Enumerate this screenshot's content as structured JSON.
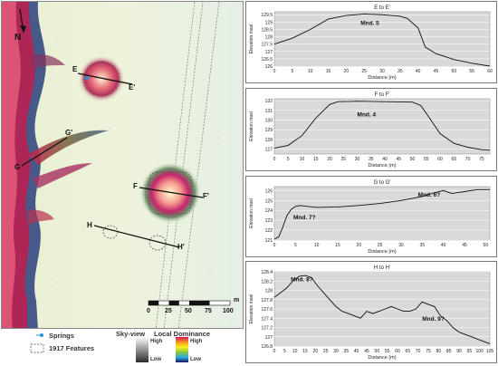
{
  "map": {
    "north_label": "N",
    "labels": {
      "e": "E",
      "e_prime": "E'",
      "f": "F",
      "f_prime": "F'",
      "g": "G",
      "g_prime": "G'",
      "h": "H",
      "h_prime": "H'"
    },
    "scale_ticks": [
      "0",
      "25",
      "50",
      "75",
      "100"
    ],
    "scale_unit": "m"
  },
  "legend": {
    "springs": "Springs",
    "features_1917": "1917 Features",
    "sky_view_title": "Sky-view",
    "sky_view_high": "High",
    "sky_view_low": "Low",
    "local_dominance_title": "Local Dominance",
    "local_dominance_high": "High",
    "local_dominance_low": "Low"
  },
  "chart_data": [
    {
      "type": "line",
      "title": "E to E'",
      "xlabel": "Distance (m)",
      "ylabel": "Elevation masl",
      "x_ticks": [
        0,
        5,
        10,
        15,
        20,
        25,
        30,
        35,
        40,
        45,
        50,
        55,
        60
      ],
      "y_ticks": [
        126,
        126.5,
        127,
        127.5,
        128,
        128.5,
        129,
        129.5
      ],
      "xlim": [
        0,
        60
      ],
      "ylim": [
        126,
        129.7
      ],
      "grid": true,
      "annotations": [
        {
          "text": "Mnd. 5",
          "x": 24,
          "y": 128.8
        }
      ],
      "x": [
        0,
        5,
        10,
        15,
        20,
        25,
        30,
        35,
        37,
        40,
        42,
        45,
        50,
        55,
        60
      ],
      "y": [
        127.5,
        127.9,
        128.5,
        129.2,
        129.45,
        129.55,
        129.5,
        129.4,
        129.25,
        128.6,
        127.3,
        126.85,
        126.45,
        126.2,
        126.0
      ]
    },
    {
      "type": "line",
      "title": "F to F'",
      "xlabel": "Distance (m)",
      "ylabel": "Elevation masl",
      "x_ticks": [
        0,
        5,
        10,
        15,
        20,
        25,
        30,
        35,
        40,
        45,
        50,
        55,
        60,
        65,
        70,
        75
      ],
      "y_ticks": [
        127,
        128,
        129,
        130,
        131,
        132
      ],
      "xlim": [
        0,
        78
      ],
      "ylim": [
        126.5,
        132.2
      ],
      "grid": true,
      "annotations": [
        {
          "text": "Mnd. 4",
          "x": 30,
          "y": 130.4
        }
      ],
      "x": [
        0,
        5,
        10,
        15,
        20,
        23,
        30,
        40,
        50,
        53,
        55,
        60,
        65,
        70,
        75,
        78
      ],
      "y": [
        127.1,
        127.4,
        128.4,
        130.2,
        131.6,
        131.9,
        131.95,
        131.9,
        131.85,
        131.5,
        130.7,
        128.6,
        127.6,
        127.2,
        126.95,
        126.9
      ]
    },
    {
      "type": "line",
      "title": "G to G'",
      "xlabel": "Distance (m)",
      "ylabel": "Elevation masl",
      "x_ticks": [
        0,
        5,
        10,
        15,
        20,
        25,
        30,
        35,
        40,
        45,
        50
      ],
      "y_ticks": [
        121,
        122,
        123,
        124,
        125,
        126
      ],
      "xlim": [
        0,
        51
      ],
      "ylim": [
        121,
        126.4
      ],
      "grid": true,
      "annotations": [
        {
          "text": "Mnd. 7?",
          "x": 4.5,
          "y": 123.1
        },
        {
          "text": "Mnd. 6?",
          "x": 34,
          "y": 125.4
        }
      ],
      "x": [
        0,
        1,
        2,
        3,
        4,
        5,
        6,
        8,
        10,
        15,
        20,
        25,
        30,
        35,
        38,
        40,
        42,
        45,
        48,
        51
      ],
      "y": [
        121.1,
        121.3,
        122.3,
        123.5,
        124.1,
        124.4,
        124.5,
        124.4,
        124.3,
        124.35,
        124.5,
        124.7,
        125.0,
        125.4,
        125.8,
        126.0,
        125.7,
        125.9,
        126.1,
        126.1
      ]
    },
    {
      "type": "line",
      "title": "H to H'",
      "xlabel": "Distance (m)",
      "ylabel": "Elevation masl",
      "x_ticks": [
        0,
        5,
        10,
        15,
        20,
        25,
        30,
        35,
        40,
        45,
        50,
        55,
        60,
        65,
        70,
        75,
        80,
        85,
        90,
        95,
        100,
        105
      ],
      "y_ticks": [
        126.8,
        127,
        127.2,
        127.4,
        127.6,
        127.8,
        128,
        128.2,
        128.4
      ],
      "xlim": [
        0,
        105
      ],
      "ylim": [
        126.8,
        128.4
      ],
      "grid": true,
      "annotations": [
        {
          "text": "Mnd. 8?",
          "x": 8,
          "y": 128.2
        },
        {
          "text": "Mnd. 9?",
          "x": 72,
          "y": 127.35
        }
      ],
      "x": [
        0,
        3,
        6,
        9,
        12,
        15,
        18,
        21,
        24,
        27,
        30,
        33,
        36,
        39,
        42,
        45,
        48,
        51,
        54,
        57,
        60,
        63,
        66,
        69,
        72,
        75,
        78,
        81,
        84,
        87,
        90,
        93,
        96,
        99,
        102,
        105
      ],
      "y": [
        127.85,
        127.95,
        128.05,
        128.2,
        128.3,
        128.32,
        128.28,
        128.1,
        127.95,
        127.8,
        127.65,
        127.55,
        127.5,
        127.45,
        127.4,
        127.55,
        127.5,
        127.55,
        127.6,
        127.65,
        127.6,
        127.55,
        127.55,
        127.6,
        127.75,
        127.7,
        127.65,
        127.45,
        127.35,
        127.2,
        127.1,
        127.05,
        127.0,
        126.95,
        126.9,
        126.85
      ]
    }
  ]
}
